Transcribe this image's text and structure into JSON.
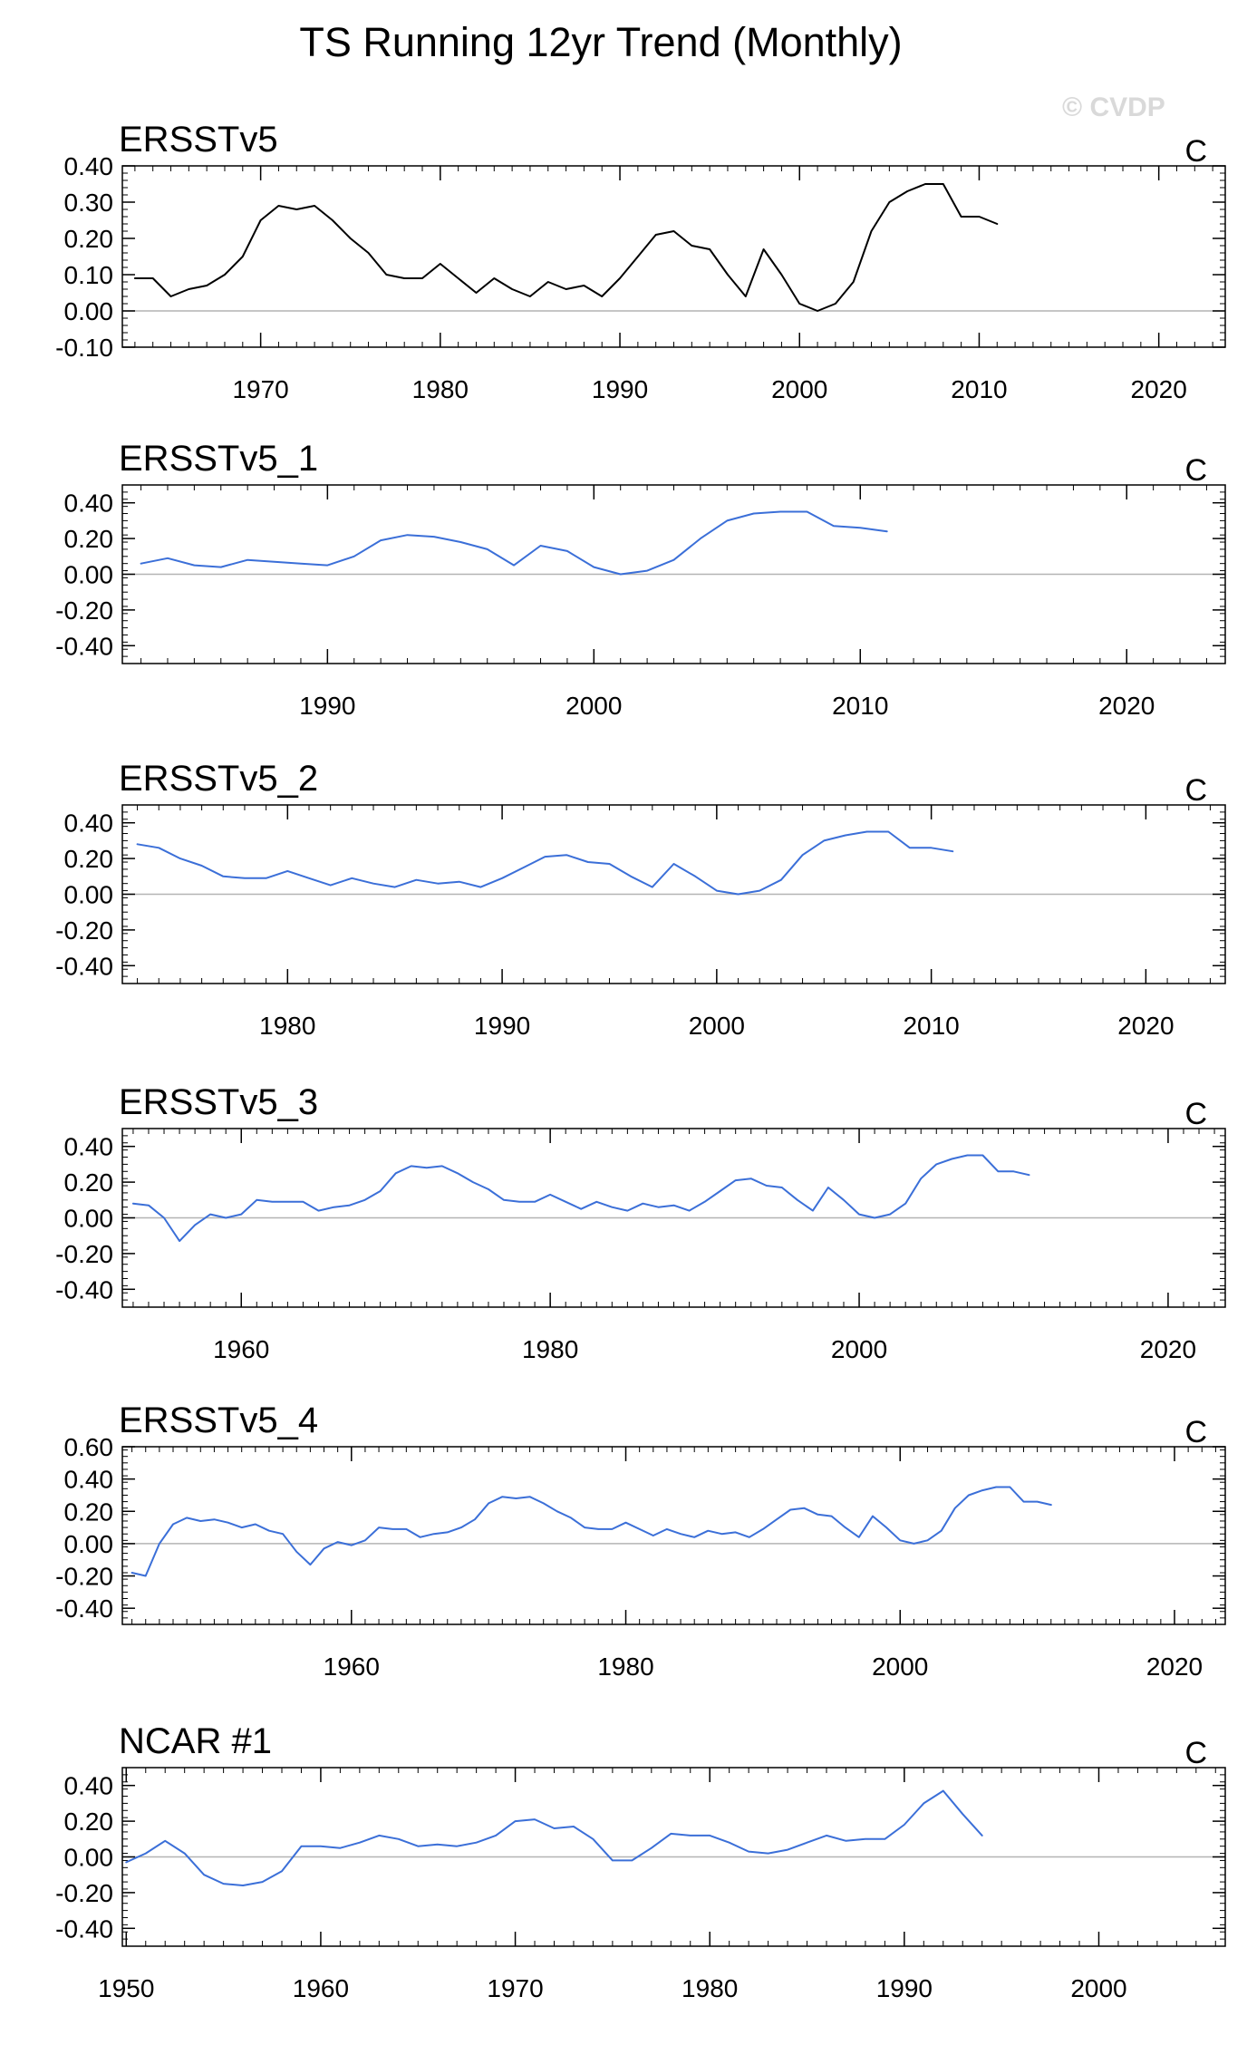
{
  "figure": {
    "title": "TS Running 12yr Trend (Monthly)",
    "watermark": "© CVDP"
  },
  "colors": {
    "obs_line": "#000000",
    "model_line": "#3b6fd8",
    "zero_line": "#b4b4b4",
    "axis": "#000000",
    "watermark": "#d9d9d9"
  },
  "chart_data": [
    {
      "type": "line",
      "title": "ERSSTv5",
      "units": "C",
      "xlim": [
        1962.3,
        2023.7
      ],
      "ylim": [
        -0.1,
        0.4
      ],
      "yticks": [
        -0.1,
        0.0,
        0.1,
        0.2,
        0.3,
        0.4
      ],
      "yticklabels": [
        "-0.10",
        "0.00",
        "0.10",
        "0.20",
        "0.30",
        "0.40"
      ],
      "xticks": [
        1970,
        1980,
        1990,
        2000,
        2010,
        2020
      ],
      "xticklabels": [
        "1970",
        "1980",
        "1990",
        "2000",
        "2010",
        "2020"
      ],
      "color_key": "obs_line",
      "x": [
        1963,
        1964,
        1965,
        1966,
        1967,
        1968,
        1969,
        1970,
        1971,
        1972,
        1973,
        1974,
        1975,
        1976,
        1977,
        1978,
        1979,
        1980,
        1981,
        1982,
        1983,
        1984,
        1985,
        1986,
        1987,
        1988,
        1989,
        1990,
        1991,
        1992,
        1993,
        1994,
        1995,
        1996,
        1997,
        1998,
        1999,
        2000,
        2001,
        2002,
        2003,
        2004,
        2005,
        2006,
        2007,
        2008,
        2009,
        2010,
        2011
      ],
      "y": [
        0.09,
        0.09,
        0.04,
        0.06,
        0.07,
        0.1,
        0.15,
        0.25,
        0.29,
        0.28,
        0.29,
        0.25,
        0.2,
        0.16,
        0.1,
        0.09,
        0.09,
        0.13,
        0.09,
        0.05,
        0.09,
        0.06,
        0.04,
        0.08,
        0.06,
        0.07,
        0.04,
        0.09,
        0.15,
        0.21,
        0.22,
        0.18,
        0.17,
        0.1,
        0.04,
        0.17,
        0.1,
        0.02,
        0.0,
        0.02,
        0.08,
        0.22,
        0.3,
        0.33,
        0.35,
        0.35,
        0.26,
        0.26,
        0.24
      ]
    },
    {
      "type": "line",
      "title": "ERSSTv5_1",
      "units": "C",
      "xlim": [
        1982.3,
        2023.7
      ],
      "ylim": [
        -0.5,
        0.5
      ],
      "yticks": [
        -0.4,
        -0.2,
        0.0,
        0.2,
        0.4
      ],
      "yticklabels": [
        "-0.40",
        "-0.20",
        "0.00",
        "0.20",
        "0.40"
      ],
      "xticks": [
        1990,
        2000,
        2010,
        2020
      ],
      "xticklabels": [
        "1990",
        "2000",
        "2010",
        "2020"
      ],
      "color_key": "model_line",
      "x": [
        1983,
        1984,
        1985,
        1986,
        1987,
        1988,
        1989,
        1990,
        1991,
        1992,
        1993,
        1994,
        1995,
        1996,
        1997,
        1998,
        1999,
        2000,
        2001,
        2002,
        2003,
        2004,
        2005,
        2006,
        2007,
        2008,
        2009,
        2010,
        2011
      ],
      "y": [
        0.06,
        0.09,
        0.05,
        0.04,
        0.08,
        0.07,
        0.06,
        0.05,
        0.1,
        0.19,
        0.22,
        0.21,
        0.18,
        0.14,
        0.05,
        0.16,
        0.13,
        0.04,
        0.0,
        0.02,
        0.08,
        0.2,
        0.3,
        0.34,
        0.35,
        0.35,
        0.27,
        0.26,
        0.24
      ]
    },
    {
      "type": "line",
      "title": "ERSSTv5_2",
      "units": "C",
      "xlim": [
        1972.3,
        2023.7
      ],
      "ylim": [
        -0.5,
        0.5
      ],
      "yticks": [
        -0.4,
        -0.2,
        0.0,
        0.2,
        0.4
      ],
      "yticklabels": [
        "-0.40",
        "-0.20",
        "0.00",
        "0.20",
        "0.40"
      ],
      "xticks": [
        1980,
        1990,
        2000,
        2010,
        2020
      ],
      "xticklabels": [
        "1980",
        "1990",
        "2000",
        "2010",
        "2020"
      ],
      "color_key": "model_line",
      "x": [
        1973,
        1974,
        1975,
        1976,
        1977,
        1978,
        1979,
        1980,
        1981,
        1982,
        1983,
        1984,
        1985,
        1986,
        1987,
        1988,
        1989,
        1990,
        1991,
        1992,
        1993,
        1994,
        1995,
        1996,
        1997,
        1998,
        1999,
        2000,
        2001,
        2002,
        2003,
        2004,
        2005,
        2006,
        2007,
        2008,
        2009,
        2010,
        2011
      ],
      "y": [
        0.28,
        0.26,
        0.2,
        0.16,
        0.1,
        0.09,
        0.09,
        0.13,
        0.09,
        0.05,
        0.09,
        0.06,
        0.04,
        0.08,
        0.06,
        0.07,
        0.04,
        0.09,
        0.15,
        0.21,
        0.22,
        0.18,
        0.17,
        0.1,
        0.04,
        0.17,
        0.1,
        0.02,
        0.0,
        0.02,
        0.08,
        0.22,
        0.3,
        0.33,
        0.35,
        0.35,
        0.26,
        0.26,
        0.24
      ]
    },
    {
      "type": "line",
      "title": "ERSSTv5_3",
      "units": "C",
      "xlim": [
        1952.3,
        2023.7
      ],
      "ylim": [
        -0.5,
        0.5
      ],
      "yticks": [
        -0.4,
        -0.2,
        0.0,
        0.2,
        0.4
      ],
      "yticklabels": [
        "-0.40",
        "-0.20",
        "0.00",
        "0.20",
        "0.40"
      ],
      "xticks": [
        1960,
        1980,
        2000,
        2020
      ],
      "xticklabels": [
        "1960",
        "1980",
        "2000",
        "2020"
      ],
      "color_key": "model_line",
      "x": [
        1953,
        1954,
        1955,
        1956,
        1957,
        1958,
        1959,
        1960,
        1961,
        1962,
        1963,
        1964,
        1965,
        1966,
        1967,
        1968,
        1969,
        1970,
        1971,
        1972,
        1973,
        1974,
        1975,
        1976,
        1977,
        1978,
        1979,
        1980,
        1981,
        1982,
        1983,
        1984,
        1985,
        1986,
        1987,
        1988,
        1989,
        1990,
        1991,
        1992,
        1993,
        1994,
        1995,
        1996,
        1997,
        1998,
        1999,
        2000,
        2001,
        2002,
        2003,
        2004,
        2005,
        2006,
        2007,
        2008,
        2009,
        2010,
        2011
      ],
      "y": [
        0.08,
        0.07,
        0.0,
        -0.13,
        -0.04,
        0.02,
        0.0,
        0.02,
        0.1,
        0.09,
        0.09,
        0.09,
        0.04,
        0.06,
        0.07,
        0.1,
        0.15,
        0.25,
        0.29,
        0.28,
        0.29,
        0.25,
        0.2,
        0.16,
        0.1,
        0.09,
        0.09,
        0.13,
        0.09,
        0.05,
        0.09,
        0.06,
        0.04,
        0.08,
        0.06,
        0.07,
        0.04,
        0.09,
        0.15,
        0.21,
        0.22,
        0.18,
        0.17,
        0.1,
        0.04,
        0.17,
        0.1,
        0.02,
        0.0,
        0.02,
        0.08,
        0.22,
        0.3,
        0.33,
        0.35,
        0.35,
        0.26,
        0.26,
        0.24
      ]
    },
    {
      "type": "line",
      "title": "ERSSTv5_4",
      "units": "C",
      "xlim": [
        1943.3,
        2023.7
      ],
      "ylim": [
        -0.5,
        0.6
      ],
      "yticks": [
        -0.4,
        -0.2,
        0.0,
        0.2,
        0.4,
        0.6
      ],
      "yticklabels": [
        "-0.40",
        "-0.20",
        "0.00",
        "0.20",
        "0.40",
        "0.60"
      ],
      "xticks": [
        1960,
        1980,
        2000,
        2020
      ],
      "xticklabels": [
        "1960",
        "1980",
        "2000",
        "2020"
      ],
      "color_key": "model_line",
      "x": [
        1944,
        1945,
        1946,
        1947,
        1948,
        1949,
        1950,
        1951,
        1952,
        1953,
        1954,
        1955,
        1956,
        1957,
        1958,
        1959,
        1960,
        1961,
        1962,
        1963,
        1964,
        1965,
        1966,
        1967,
        1968,
        1969,
        1970,
        1971,
        1972,
        1973,
        1974,
        1975,
        1976,
        1977,
        1978,
        1979,
        1980,
        1981,
        1982,
        1983,
        1984,
        1985,
        1986,
        1987,
        1988,
        1989,
        1990,
        1991,
        1992,
        1993,
        1994,
        1995,
        1996,
        1997,
        1998,
        1999,
        2000,
        2001,
        2002,
        2003,
        2004,
        2005,
        2006,
        2007,
        2008,
        2009,
        2010,
        2011
      ],
      "y": [
        -0.18,
        -0.2,
        0.0,
        0.12,
        0.16,
        0.14,
        0.15,
        0.13,
        0.1,
        0.12,
        0.08,
        0.06,
        -0.05,
        -0.13,
        -0.03,
        0.01,
        -0.01,
        0.02,
        0.1,
        0.09,
        0.09,
        0.04,
        0.06,
        0.07,
        0.1,
        0.15,
        0.25,
        0.29,
        0.28,
        0.29,
        0.25,
        0.2,
        0.16,
        0.1,
        0.09,
        0.09,
        0.13,
        0.09,
        0.05,
        0.09,
        0.06,
        0.04,
        0.08,
        0.06,
        0.07,
        0.04,
        0.09,
        0.15,
        0.21,
        0.22,
        0.18,
        0.17,
        0.1,
        0.04,
        0.17,
        0.1,
        0.02,
        0.0,
        0.02,
        0.08,
        0.22,
        0.3,
        0.33,
        0.35,
        0.35,
        0.26,
        0.26,
        0.24
      ]
    },
    {
      "type": "line",
      "title": "NCAR #1",
      "units": "C",
      "xlim": [
        1949.8,
        2006.5
      ],
      "ylim": [
        -0.5,
        0.5
      ],
      "yticks": [
        -0.4,
        -0.2,
        0.0,
        0.2,
        0.4
      ],
      "yticklabels": [
        "-0.40",
        "-0.20",
        "0.00",
        "0.20",
        "0.40"
      ],
      "xticks": [
        1950,
        1960,
        1970,
        1980,
        1990,
        2000
      ],
      "xticklabels": [
        "1950",
        "1960",
        "1970",
        "1980",
        "1990",
        "2000"
      ],
      "color_key": "model_line",
      "x": [
        1950,
        1951,
        1952,
        1953,
        1954,
        1955,
        1956,
        1957,
        1958,
        1959,
        1960,
        1961,
        1962,
        1963,
        1964,
        1965,
        1966,
        1967,
        1968,
        1969,
        1970,
        1971,
        1972,
        1973,
        1974,
        1975,
        1976,
        1977,
        1978,
        1979,
        1980,
        1981,
        1982,
        1983,
        1984,
        1985,
        1986,
        1987,
        1988,
        1989,
        1990,
        1991,
        1992,
        1993,
        1994
      ],
      "y": [
        -0.03,
        0.02,
        0.09,
        0.02,
        -0.1,
        -0.15,
        -0.16,
        -0.14,
        -0.08,
        0.06,
        0.06,
        0.05,
        0.08,
        0.12,
        0.1,
        0.06,
        0.07,
        0.06,
        0.08,
        0.12,
        0.2,
        0.21,
        0.16,
        0.17,
        0.1,
        -0.02,
        -0.02,
        0.05,
        0.13,
        0.12,
        0.12,
        0.08,
        0.03,
        0.02,
        0.04,
        0.08,
        0.12,
        0.09,
        0.1,
        0.1,
        0.18,
        0.3,
        0.37,
        0.24,
        0.12
      ]
    }
  ]
}
